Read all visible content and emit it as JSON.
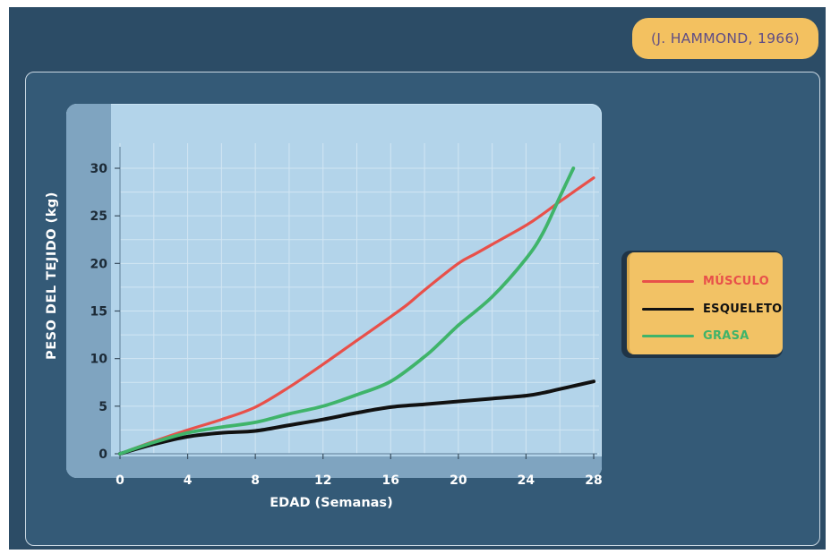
{
  "citation": "(J. HAMMOND, 1966)",
  "chart_data": {
    "type": "line",
    "title": "",
    "xlabel": "EDAD (Semanas)",
    "ylabel": "PESO DEL TEJIDO (kg)",
    "xlim": [
      0,
      28
    ],
    "ylim": [
      0,
      30
    ],
    "x_ticks": [
      0,
      4,
      8,
      12,
      16,
      20,
      24,
      28
    ],
    "y_ticks": [
      0,
      5,
      10,
      15,
      20,
      25,
      30
    ],
    "grid": true,
    "legend_position": "right",
    "series": [
      {
        "name": "MÚSCULO",
        "color": "#e8504a",
        "points": [
          [
            0,
            0
          ],
          [
            2,
            1.3
          ],
          [
            4,
            2.5
          ],
          [
            6,
            3.6
          ],
          [
            8,
            4.9
          ],
          [
            10,
            7.0
          ],
          [
            12,
            9.4
          ],
          [
            14,
            11.9
          ],
          [
            16,
            14.4
          ],
          [
            17,
            15.7
          ],
          [
            18,
            17.2
          ],
          [
            20,
            20.0
          ],
          [
            21,
            21.0
          ],
          [
            22,
            22.0
          ],
          [
            24,
            24.0
          ],
          [
            25,
            25.2
          ],
          [
            26,
            26.5
          ],
          [
            28,
            29.0
          ]
        ]
      },
      {
        "name": "ESQUELETO",
        "color": "#111111",
        "points": [
          [
            0,
            0
          ],
          [
            2,
            1.0
          ],
          [
            4,
            1.8
          ],
          [
            6,
            2.2
          ],
          [
            8,
            2.4
          ],
          [
            10,
            3.0
          ],
          [
            12,
            3.6
          ],
          [
            14,
            4.3
          ],
          [
            16,
            4.9
          ],
          [
            18,
            5.2
          ],
          [
            20,
            5.5
          ],
          [
            22,
            5.8
          ],
          [
            24,
            6.1
          ],
          [
            25,
            6.4
          ],
          [
            26,
            6.8
          ],
          [
            28,
            7.6
          ]
        ]
      },
      {
        "name": "GRASA",
        "color": "#3fb46a",
        "points": [
          [
            0,
            0
          ],
          [
            2,
            1.2
          ],
          [
            4,
            2.2
          ],
          [
            6,
            2.8
          ],
          [
            8,
            3.3
          ],
          [
            10,
            4.2
          ],
          [
            12,
            5.0
          ],
          [
            14,
            6.2
          ],
          [
            16,
            7.6
          ],
          [
            18,
            10.2
          ],
          [
            19,
            11.8
          ],
          [
            20,
            13.5
          ],
          [
            22,
            16.5
          ],
          [
            24,
            20.5
          ],
          [
            25,
            23.2
          ],
          [
            26,
            27.0
          ],
          [
            26.8,
            30.0
          ]
        ]
      }
    ]
  }
}
